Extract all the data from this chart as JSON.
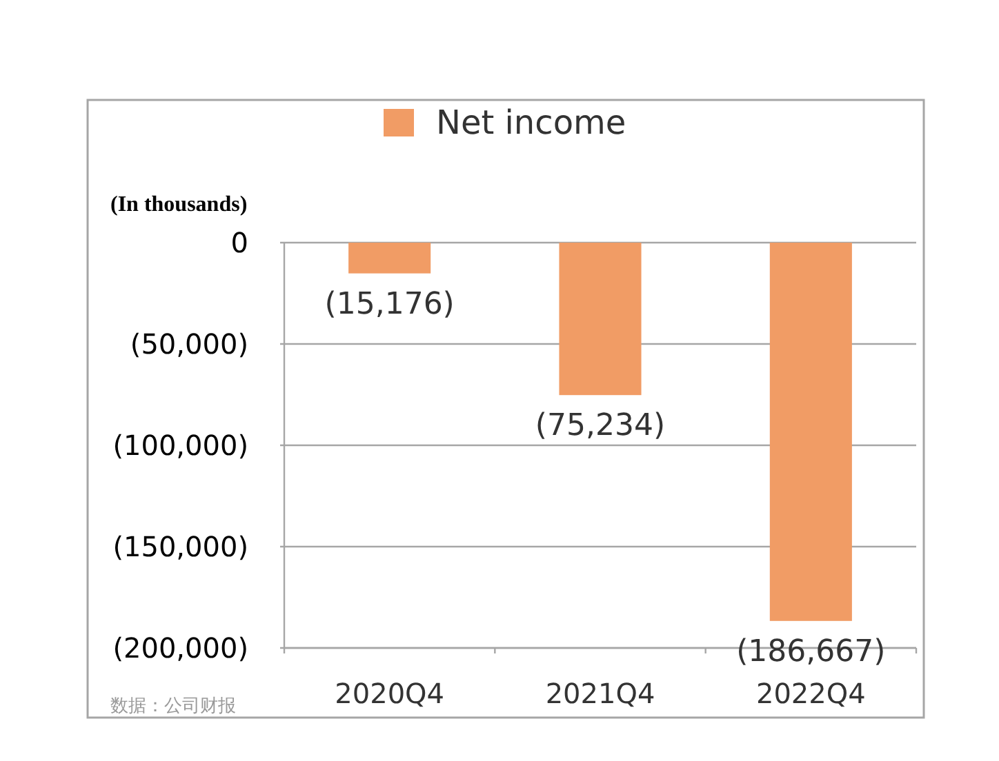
{
  "chart_data": {
    "type": "bar",
    "categories": [
      "2020Q4",
      "2021Q4",
      "2022Q4"
    ],
    "series": [
      {
        "name": "Net income",
        "color": "#f19c65",
        "values": [
          -15176,
          -75234,
          -186667
        ],
        "value_labels": [
          "(15,176)",
          "(75,234)",
          "(186,667)"
        ]
      }
    ],
    "ylabel": "(In thousands)",
    "ylim": [
      -200000,
      0
    ],
    "yticks": [
      0,
      {
        "value": -50000,
        "label": "(50,000)"
      },
      {
        "value": -100000,
        "label": "(100,000)"
      },
      {
        "value": -150000,
        "label": "(150,000)"
      },
      {
        "value": -200000,
        "label": "(200,000)"
      }
    ],
    "grid": "y",
    "legend": "top",
    "annotations": [
      "数据：公司财报"
    ]
  }
}
